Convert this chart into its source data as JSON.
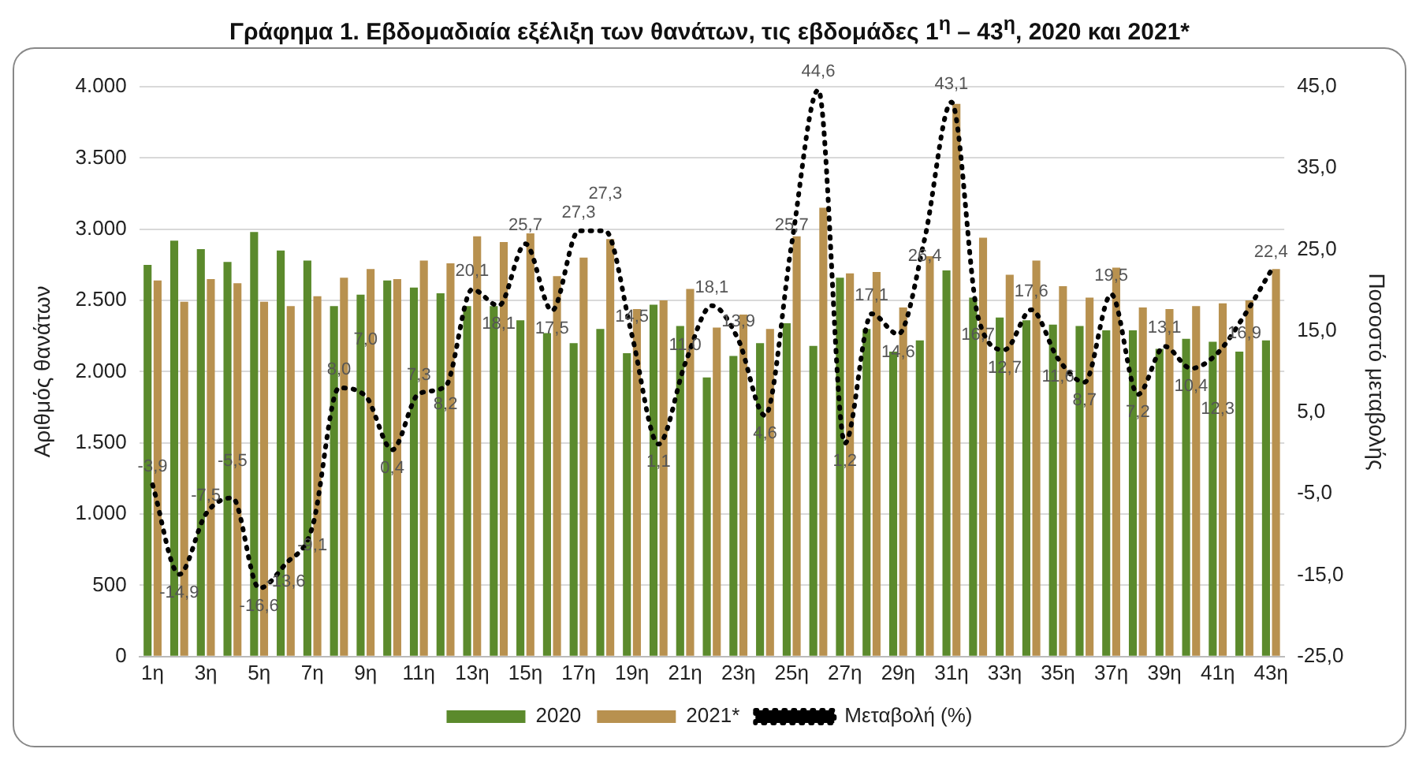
{
  "chart_data": {
    "type": "bar",
    "title": "Γράφημα 1.  Εβδομαδιαία εξέλιξη των θανάτων, τις εβδομάδες 1$^{η}$ – 43$^{η}$, 2020 και 2021*",
    "ylabel": "Αριθμός θανάτων",
    "y2label": "Ποσοστό μεταβολής",
    "categories": [
      "1η",
      null,
      "3η",
      null,
      "5η",
      null,
      "7η",
      null,
      "9η",
      null,
      "11η",
      null,
      "13η",
      null,
      "15η",
      null,
      "17η",
      null,
      "19η",
      null,
      "21η",
      null,
      "23η",
      null,
      "25η",
      null,
      "27η",
      null,
      "29η",
      null,
      "31η",
      null,
      "33η",
      null,
      "35η",
      null,
      "37η",
      null,
      "39η",
      null,
      "41η",
      null,
      "43η"
    ],
    "series": [
      {
        "name": "2020",
        "color": "#5b8a2c",
        "values": [
          2750,
          2920,
          2860,
          2770,
          2980,
          2850,
          2780,
          2460,
          2540,
          2640,
          2590,
          2550,
          2460,
          2460,
          2360,
          2270,
          2200,
          2300,
          2130,
          2470,
          2320,
          1960,
          2110,
          2200,
          2340,
          2180,
          2660,
          2300,
          2140,
          2220,
          2710,
          2520,
          2380,
          2360,
          2330,
          2320,
          2290,
          2290,
          2160,
          2230,
          2210,
          2140,
          2220
        ]
      },
      {
        "name": "2021*",
        "color": "#b8914f",
        "values": [
          2640,
          2490,
          2650,
          2620,
          2490,
          2460,
          2530,
          2660,
          2720,
          2650,
          2780,
          2760,
          2950,
          2910,
          2970,
          2670,
          2800,
          2930,
          2440,
          2500,
          2580,
          2310,
          2400,
          2300,
          2950,
          3150,
          2690,
          2700,
          2450,
          2810,
          3880,
          2940,
          2680,
          2780,
          2600,
          2520,
          2730,
          2450,
          2440,
          2460,
          2480,
          2500,
          2720
        ]
      },
      {
        "name": "Μεταβολή (%)",
        "type": "line",
        "axis": "y2",
        "color": "#000000",
        "line_style": "dotted",
        "marker": "none",
        "values": [
          -3.9,
          -14.9,
          -7.5,
          -5.5,
          -16.6,
          -13.6,
          -9.1,
          8.0,
          7.0,
          0.4,
          7.3,
          8.2,
          20.1,
          18.1,
          25.7,
          17.5,
          27.3,
          27.3,
          14.5,
          1.1,
          11.0,
          18.1,
          13.9,
          4.6,
          25.7,
          44.6,
          1.2,
          17.1,
          14.6,
          26.4,
          43.1,
          16.7,
          12.7,
          17.6,
          11.6,
          8.7,
          19.5,
          7.2,
          13.1,
          10.4,
          12.3,
          16.9,
          22.4
        ],
        "value_labels": [
          "-3,9",
          "-14,9",
          "-7,5",
          "-5,5",
          "-16,6",
          "-13,6",
          "-9,1",
          "8,0",
          "7,0",
          "0,4",
          "7,3",
          "8,2",
          "20,1",
          "18,1",
          "25,7",
          "17,5",
          "27,3",
          "27,3",
          "14,5",
          "1,1",
          "11,0",
          "18,1",
          "13,9",
          "4,6",
          "25,7",
          "44,6",
          "1,2",
          "17,1",
          "14,6",
          "26,4",
          "43,1",
          "16,7",
          "12,7",
          "17,6",
          "11,6",
          "8,7",
          "19,5",
          "7,2",
          "13,1",
          "10,4",
          "12,3",
          "16,9",
          "22,4"
        ]
      }
    ],
    "ylim": [
      0,
      4000
    ],
    "yticks": [
      {
        "value": 0,
        "label": "0"
      },
      {
        "value": 500,
        "label": "500"
      },
      {
        "value": 1000,
        "label": "1.000"
      },
      {
        "value": 1500,
        "label": "1.500"
      },
      {
        "value": 2000,
        "label": "2.000"
      },
      {
        "value": 2500,
        "label": "2.500"
      },
      {
        "value": 3000,
        "label": "3.000"
      },
      {
        "value": 3500,
        "label": "3.500"
      },
      {
        "value": 4000,
        "label": "4.000"
      }
    ],
    "y2lim": [
      -25,
      45
    ],
    "y2ticks": [
      {
        "value": -25,
        "label": "-25,0"
      },
      {
        "value": -15,
        "label": "-15,0"
      },
      {
        "value": -5,
        "label": "-5,0"
      },
      {
        "value": 5,
        "label": "5,0"
      },
      {
        "value": 15,
        "label": "15,0"
      },
      {
        "value": 25,
        "label": "25,0"
      },
      {
        "value": 35,
        "label": "35,0"
      },
      {
        "value": 45,
        "label": "45,0"
      }
    ],
    "grid": "y",
    "legend": "bottom"
  }
}
